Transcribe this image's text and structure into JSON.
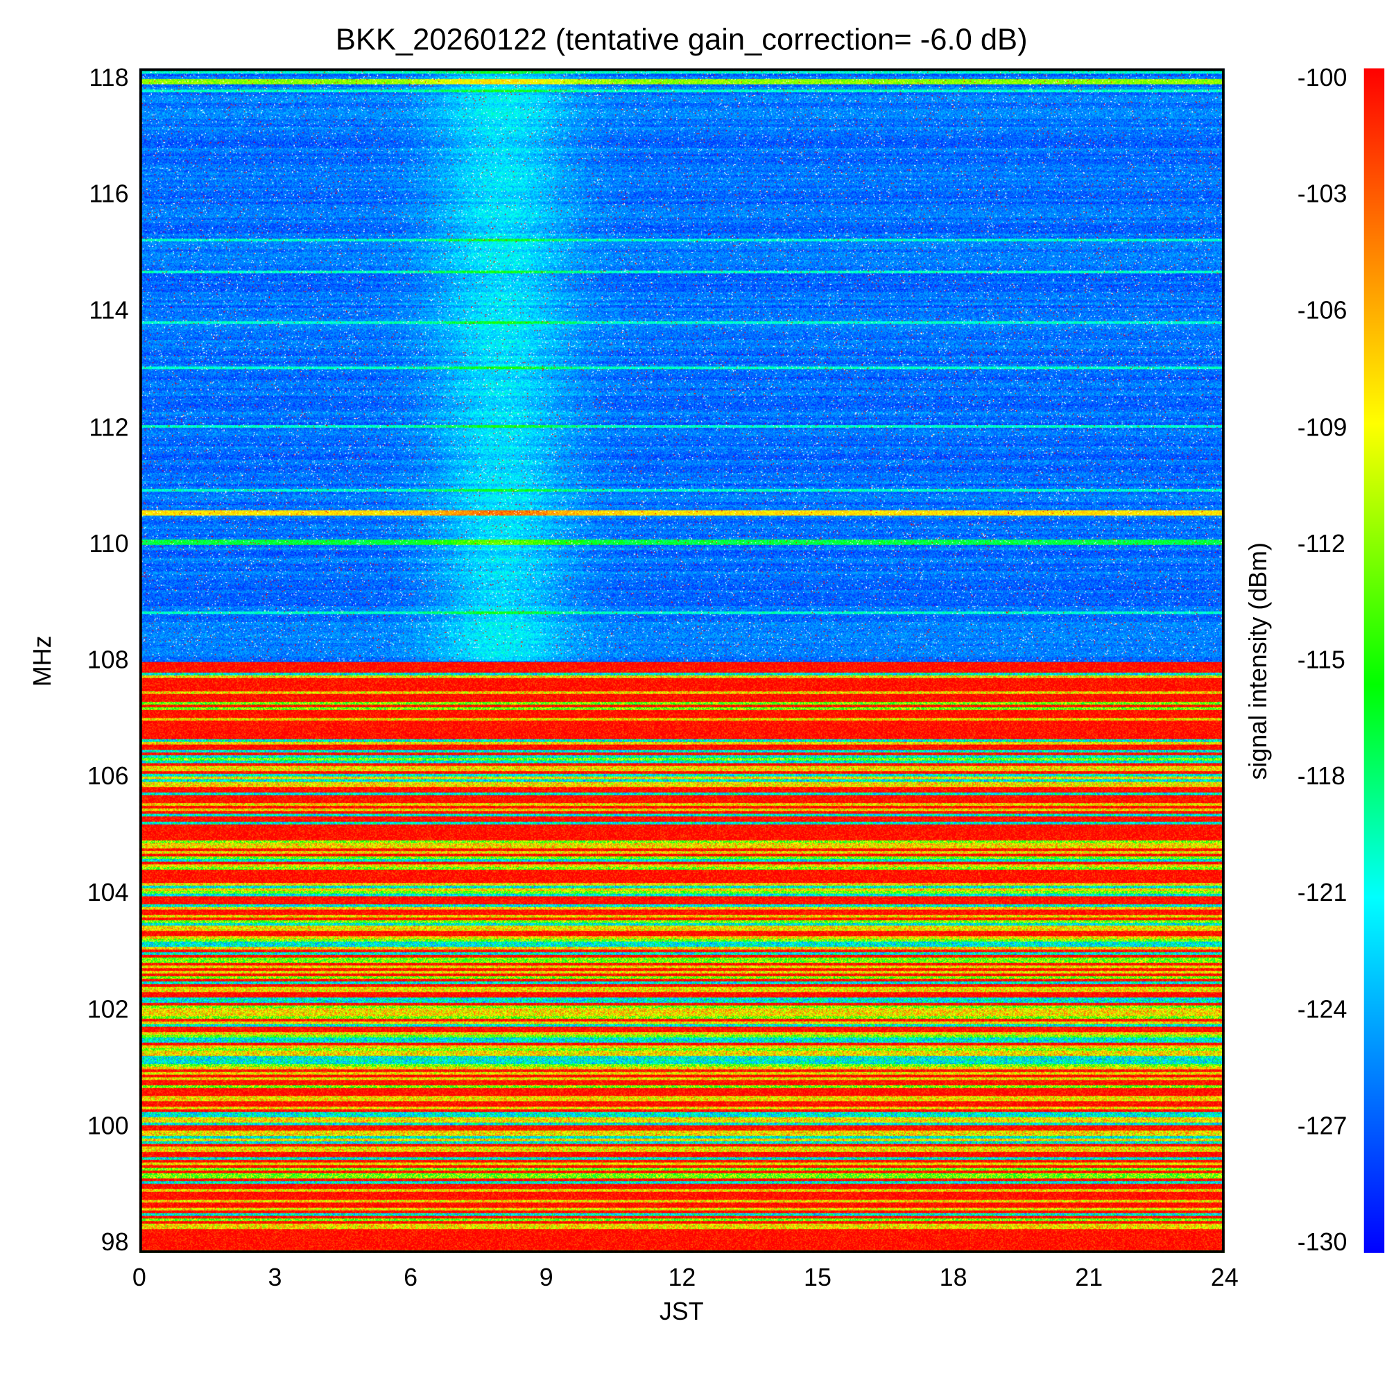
{
  "chart_data": {
    "type": "heatmap",
    "title": "BKK_20260122 (tentative gain_correction= -6.0 dB)",
    "xlabel": "JST",
    "ylabel": "MHz",
    "colorbar_label": "signal intensity (dBm)",
    "xlim": [
      0,
      24
    ],
    "ylim": [
      97.8,
      118.2
    ],
    "clim": [
      -130,
      -100
    ],
    "x_ticks": [
      "0",
      "3",
      "6",
      "9",
      "12",
      "15",
      "18",
      "21",
      "24"
    ],
    "y_ticks": [
      "118",
      "116",
      "114",
      "112",
      "110",
      "108",
      "106",
      "104",
      "102",
      "100",
      "98"
    ],
    "colorbar_ticks": [
      "-100",
      "-103",
      "-106",
      "-109",
      "-112",
      "-115",
      "-118",
      "-121",
      "-124",
      "-127",
      "-130"
    ],
    "colormap": [
      "#0000ff",
      "#0080ff",
      "#00ffff",
      "#00ff00",
      "#ffff00",
      "#ff8000",
      "#ff0000"
    ],
    "bands_approx_mean_dBm": [
      {
        "freq_range": [
          108.0,
          118.2
        ],
        "level": -127,
        "note": "mostly background, slightly higher 6-10 JST"
      },
      {
        "freq_range": [
          110.5,
          110.6
        ],
        "level": -108
      },
      {
        "freq_range": [
          111.9,
          112.0
        ],
        "level": -115
      },
      {
        "freq_range": [
          97.8,
          108.0
        ],
        "level": -104,
        "note": "FM broadcast band, strong signals"
      }
    ]
  }
}
